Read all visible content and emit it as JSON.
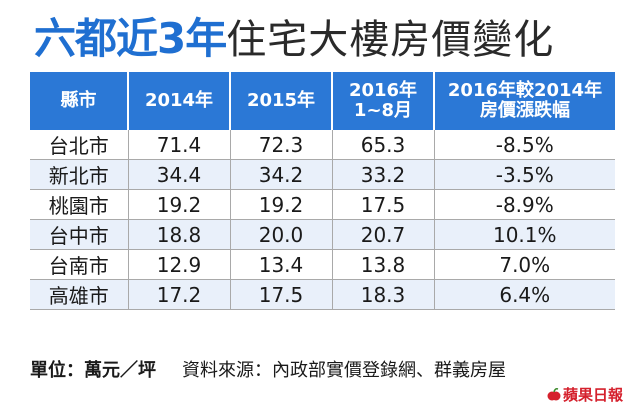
{
  "header": {
    "title_strong": "六都近3年",
    "title_normal": "住宅大樓房價變化"
  },
  "chart_data": {
    "type": "table",
    "columns": [
      [
        "縣市"
      ],
      [
        "2014年"
      ],
      [
        "2015年"
      ],
      [
        "2016年",
        "1~8月"
      ],
      [
        "2016年較2014年",
        "房價漲跌幅"
      ]
    ],
    "rows": [
      [
        "台北市",
        "71.4",
        "72.3",
        "65.3",
        "-8.5%"
      ],
      [
        "新北市",
        "34.4",
        "34.2",
        "33.2",
        "-3.5%"
      ],
      [
        "桃園市",
        "19.2",
        "19.2",
        "17.5",
        "-8.9%"
      ],
      [
        "台中市",
        "18.8",
        "20.0",
        "20.7",
        "10.1%"
      ],
      [
        "台南市",
        "12.9",
        "13.4",
        "13.8",
        "7.0%"
      ],
      [
        "高雄市",
        "17.2",
        "17.5",
        "18.3",
        "6.4%"
      ]
    ]
  },
  "footer": {
    "unit": "單位：萬元／坪",
    "source": "資料來源：內政部實價登錄網、群義房屋"
  },
  "brand": {
    "name": "蘋果日報",
    "color": "#d5212d"
  },
  "colors": {
    "accent": "#1f6fd1",
    "header_bg": "#2b78d6",
    "stripe": "#e9f0fa"
  }
}
